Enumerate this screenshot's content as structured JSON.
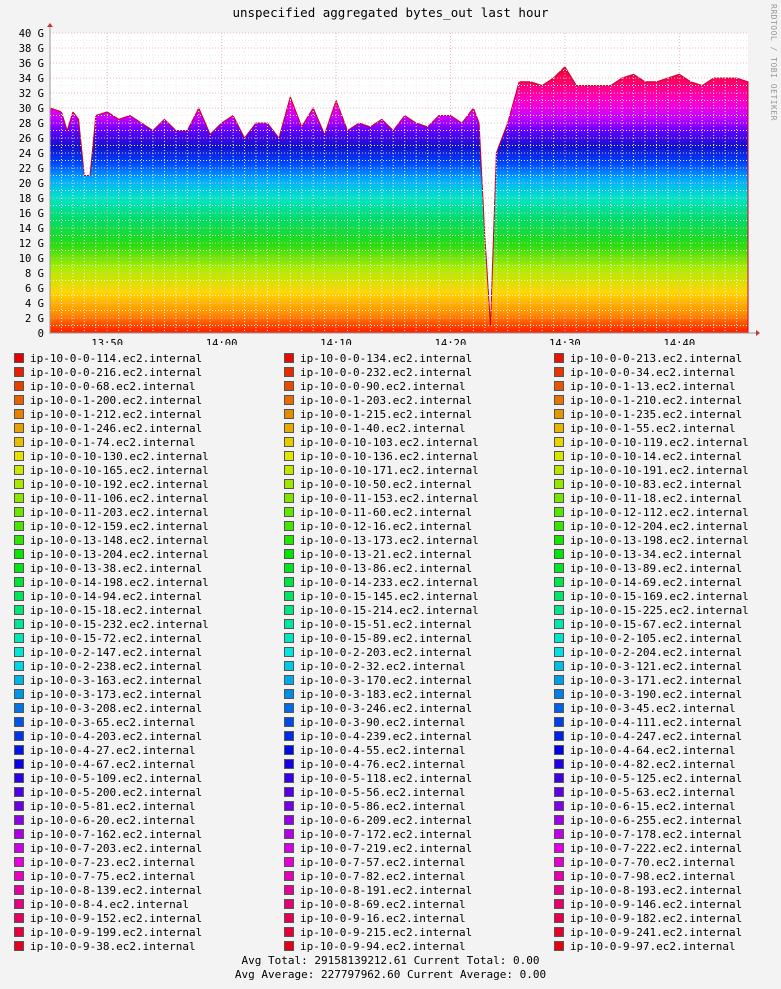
{
  "title": "unspecified aggregated bytes_out last hour",
  "vendor": "RRDTOOL / TOBI OETIKER",
  "summary": {
    "line1": "Avg Total: 29158139212.61  Current Total:  0.00",
    "line2": "Avg Average: 227797962.60  Current Average:  0.00"
  },
  "chart_data": {
    "type": "area",
    "stacked": true,
    "title": "unspecified aggregated bytes_out last hour",
    "xlabel": "",
    "ylabel": "",
    "x_ticks": [
      "13:50",
      "14:00",
      "14:10",
      "14:20",
      "14:30",
      "14:40"
    ],
    "y_ticks": [
      "0",
      "2 G",
      "4 G",
      "6 G",
      "8 G",
      "10 G",
      "12 G",
      "14 G",
      "16 G",
      "18 G",
      "20 G",
      "22 G",
      "24 G",
      "26 G",
      "28 G",
      "30 G",
      "32 G",
      "34 G",
      "36 G",
      "38 G",
      "40 G"
    ],
    "ylim": [
      0,
      40
    ],
    "y_unit": "G",
    "grid": true,
    "legend_position": "bottom",
    "total_series": {
      "name": "total",
      "x": [
        "13:45:00",
        "13:46:00",
        "13:46:30",
        "13:47:00",
        "13:47:30",
        "13:48:00",
        "13:48:30",
        "13:49:00",
        "13:50:00",
        "13:51:00",
        "13:52:00",
        "13:53:00",
        "13:54:00",
        "13:55:00",
        "13:56:00",
        "13:57:00",
        "13:58:00",
        "13:59:00",
        "14:00:00",
        "14:01:00",
        "14:02:00",
        "14:03:00",
        "14:04:00",
        "14:05:00",
        "14:06:00",
        "14:07:00",
        "14:08:00",
        "14:09:00",
        "14:10:00",
        "14:11:00",
        "14:12:00",
        "14:13:00",
        "14:14:00",
        "14:15:00",
        "14:16:00",
        "14:17:00",
        "14:18:00",
        "14:19:00",
        "14:20:00",
        "14:21:00",
        "14:22:00",
        "14:22:30",
        "14:23:00",
        "14:23:30",
        "14:24:00",
        "14:25:00",
        "14:26:00",
        "14:27:00",
        "14:28:00",
        "14:29:00",
        "14:30:00",
        "14:31:00",
        "14:32:00",
        "14:33:00",
        "14:34:00",
        "14:35:00",
        "14:36:00",
        "14:37:00",
        "14:38:00",
        "14:39:00",
        "14:40:00",
        "14:41:00",
        "14:42:00",
        "14:43:00",
        "14:44:00",
        "14:45:00",
        "14:46:00"
      ],
      "y": [
        30,
        29.5,
        27,
        29.5,
        28.5,
        21,
        21,
        29,
        29.5,
        28.5,
        29,
        28,
        27,
        28.5,
        27,
        27,
        30,
        26.5,
        28,
        29,
        26,
        28,
        28,
        26,
        31.5,
        27.5,
        30,
        26.5,
        31,
        27,
        28,
        27.5,
        28.5,
        27,
        29,
        28,
        27.5,
        29,
        29,
        28,
        30,
        28,
        13,
        1,
        24,
        28,
        33.5,
        33.5,
        33,
        34,
        35.5,
        33,
        33,
        33,
        33,
        34,
        34.5,
        33.5,
        33.5,
        34,
        34.5,
        33.5,
        33,
        34,
        34,
        34,
        33.5
      ]
    }
  },
  "legend": [
    [
      "ip-10-0-0-114.ec2.internal",
      "ip-10-0-0-134.ec2.internal",
      "ip-10-0-0-213.ec2.internal"
    ],
    [
      "ip-10-0-0-216.ec2.internal",
      "ip-10-0-0-232.ec2.internal",
      "ip-10-0-0-34.ec2.internal"
    ],
    [
      "ip-10-0-0-68.ec2.internal",
      "ip-10-0-0-90.ec2.internal",
      "ip-10-0-1-13.ec2.internal"
    ],
    [
      "ip-10-0-1-200.ec2.internal",
      "ip-10-0-1-203.ec2.internal",
      "ip-10-0-1-210.ec2.internal"
    ],
    [
      "ip-10-0-1-212.ec2.internal",
      "ip-10-0-1-215.ec2.internal",
      "ip-10-0-1-235.ec2.internal"
    ],
    [
      "ip-10-0-1-246.ec2.internal",
      "ip-10-0-1-40.ec2.internal",
      "ip-10-0-1-55.ec2.internal"
    ],
    [
      "ip-10-0-1-74.ec2.internal",
      "ip-10-0-10-103.ec2.internal",
      "ip-10-0-10-119.ec2.internal"
    ],
    [
      "ip-10-0-10-130.ec2.internal",
      "ip-10-0-10-136.ec2.internal",
      "ip-10-0-10-14.ec2.internal"
    ],
    [
      "ip-10-0-10-165.ec2.internal",
      "ip-10-0-10-171.ec2.internal",
      "ip-10-0-10-191.ec2.internal"
    ],
    [
      "ip-10-0-10-192.ec2.internal",
      "ip-10-0-10-50.ec2.internal",
      "ip-10-0-10-83.ec2.internal"
    ],
    [
      "ip-10-0-11-106.ec2.internal",
      "ip-10-0-11-153.ec2.internal",
      "ip-10-0-11-18.ec2.internal"
    ],
    [
      "ip-10-0-11-203.ec2.internal",
      "ip-10-0-11-60.ec2.internal",
      "ip-10-0-12-112.ec2.internal"
    ],
    [
      "ip-10-0-12-159.ec2.internal",
      "ip-10-0-12-16.ec2.internal",
      "ip-10-0-12-204.ec2.internal"
    ],
    [
      "ip-10-0-13-148.ec2.internal",
      "ip-10-0-13-173.ec2.internal",
      "ip-10-0-13-198.ec2.internal"
    ],
    [
      "ip-10-0-13-204.ec2.internal",
      "ip-10-0-13-21.ec2.internal",
      "ip-10-0-13-34.ec2.internal"
    ],
    [
      "ip-10-0-13-38.ec2.internal",
      "ip-10-0-13-86.ec2.internal",
      "ip-10-0-13-89.ec2.internal"
    ],
    [
      "ip-10-0-14-198.ec2.internal",
      "ip-10-0-14-233.ec2.internal",
      "ip-10-0-14-69.ec2.internal"
    ],
    [
      "ip-10-0-14-94.ec2.internal",
      "ip-10-0-15-145.ec2.internal",
      "ip-10-0-15-169.ec2.internal"
    ],
    [
      "ip-10-0-15-18.ec2.internal",
      "ip-10-0-15-214.ec2.internal",
      "ip-10-0-15-225.ec2.internal"
    ],
    [
      "ip-10-0-15-232.ec2.internal",
      "ip-10-0-15-51.ec2.internal",
      "ip-10-0-15-67.ec2.internal"
    ],
    [
      "ip-10-0-15-72.ec2.internal",
      "ip-10-0-15-89.ec2.internal",
      "ip-10-0-2-105.ec2.internal"
    ],
    [
      "ip-10-0-2-147.ec2.internal",
      "ip-10-0-2-203.ec2.internal",
      "ip-10-0-2-204.ec2.internal"
    ],
    [
      "ip-10-0-2-238.ec2.internal",
      "ip-10-0-2-32.ec2.internal",
      "ip-10-0-3-121.ec2.internal"
    ],
    [
      "ip-10-0-3-163.ec2.internal",
      "ip-10-0-3-170.ec2.internal",
      "ip-10-0-3-171.ec2.internal"
    ],
    [
      "ip-10-0-3-173.ec2.internal",
      "ip-10-0-3-183.ec2.internal",
      "ip-10-0-3-190.ec2.internal"
    ],
    [
      "ip-10-0-3-208.ec2.internal",
      "ip-10-0-3-246.ec2.internal",
      "ip-10-0-3-45.ec2.internal"
    ],
    [
      "ip-10-0-3-65.ec2.internal",
      "ip-10-0-3-90.ec2.internal",
      "ip-10-0-4-111.ec2.internal"
    ],
    [
      "ip-10-0-4-203.ec2.internal",
      "ip-10-0-4-239.ec2.internal",
      "ip-10-0-4-247.ec2.internal"
    ],
    [
      "ip-10-0-4-27.ec2.internal",
      "ip-10-0-4-55.ec2.internal",
      "ip-10-0-4-64.ec2.internal"
    ],
    [
      "ip-10-0-4-67.ec2.internal",
      "ip-10-0-4-76.ec2.internal",
      "ip-10-0-4-82.ec2.internal"
    ],
    [
      "ip-10-0-5-109.ec2.internal",
      "ip-10-0-5-118.ec2.internal",
      "ip-10-0-5-125.ec2.internal"
    ],
    [
      "ip-10-0-5-200.ec2.internal",
      "ip-10-0-5-56.ec2.internal",
      "ip-10-0-5-63.ec2.internal"
    ],
    [
      "ip-10-0-5-81.ec2.internal",
      "ip-10-0-5-86.ec2.internal",
      "ip-10-0-6-15.ec2.internal"
    ],
    [
      "ip-10-0-6-20.ec2.internal",
      "ip-10-0-6-209.ec2.internal",
      "ip-10-0-6-255.ec2.internal"
    ],
    [
      "ip-10-0-7-162.ec2.internal",
      "ip-10-0-7-172.ec2.internal",
      "ip-10-0-7-178.ec2.internal"
    ],
    [
      "ip-10-0-7-203.ec2.internal",
      "ip-10-0-7-219.ec2.internal",
      "ip-10-0-7-222.ec2.internal"
    ],
    [
      "ip-10-0-7-23.ec2.internal",
      "ip-10-0-7-57.ec2.internal",
      "ip-10-0-7-70.ec2.internal"
    ],
    [
      "ip-10-0-7-75.ec2.internal",
      "ip-10-0-7-82.ec2.internal",
      "ip-10-0-7-98.ec2.internal"
    ],
    [
      "ip-10-0-8-139.ec2.internal",
      "ip-10-0-8-191.ec2.internal",
      "ip-10-0-8-193.ec2.internal"
    ],
    [
      "ip-10-0-8-4.ec2.internal",
      "ip-10-0-8-69.ec2.internal",
      "ip-10-0-9-146.ec2.internal"
    ],
    [
      "ip-10-0-9-152.ec2.internal",
      "ip-10-0-9-16.ec2.internal",
      "ip-10-0-9-182.ec2.internal"
    ],
    [
      "ip-10-0-9-199.ec2.internal",
      "ip-10-0-9-215.ec2.internal",
      "ip-10-0-9-241.ec2.internal"
    ],
    [
      "ip-10-0-9-38.ec2.internal",
      "ip-10-0-9-94.ec2.internal",
      "ip-10-0-9-97.ec2.internal"
    ]
  ]
}
